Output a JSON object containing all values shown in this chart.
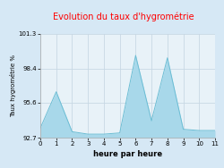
{
  "x": [
    0,
    1,
    2,
    3,
    4,
    5,
    6,
    7,
    8,
    9,
    10,
    11
  ],
  "y": [
    93.5,
    96.5,
    93.2,
    93.0,
    93.0,
    93.1,
    99.5,
    94.1,
    99.3,
    93.4,
    93.3,
    93.3
  ],
  "ylim": [
    92.7,
    101.3
  ],
  "xlim": [
    0,
    11
  ],
  "yticks": [
    92.7,
    95.6,
    98.4,
    101.3
  ],
  "xticks": [
    0,
    1,
    2,
    3,
    4,
    5,
    6,
    7,
    8,
    9,
    10,
    11
  ],
  "title": "Evolution du taux d'hygrométrie",
  "title_color": "#ff0000",
  "ylabel": "Taux hygrométrie %",
  "xlabel": "heure par heure",
  "fill_color": "#a8d8ea",
  "fill_alpha": 1.0,
  "line_color": "#6bbdd4",
  "background_color": "#d6e8f5",
  "plot_bg_color": "#e8f2f8",
  "grid_color": "#c8d8e4",
  "baseline": 92.7,
  "title_fontsize": 7,
  "ylabel_fontsize": 5,
  "xlabel_fontsize": 6,
  "tick_fontsize": 5
}
